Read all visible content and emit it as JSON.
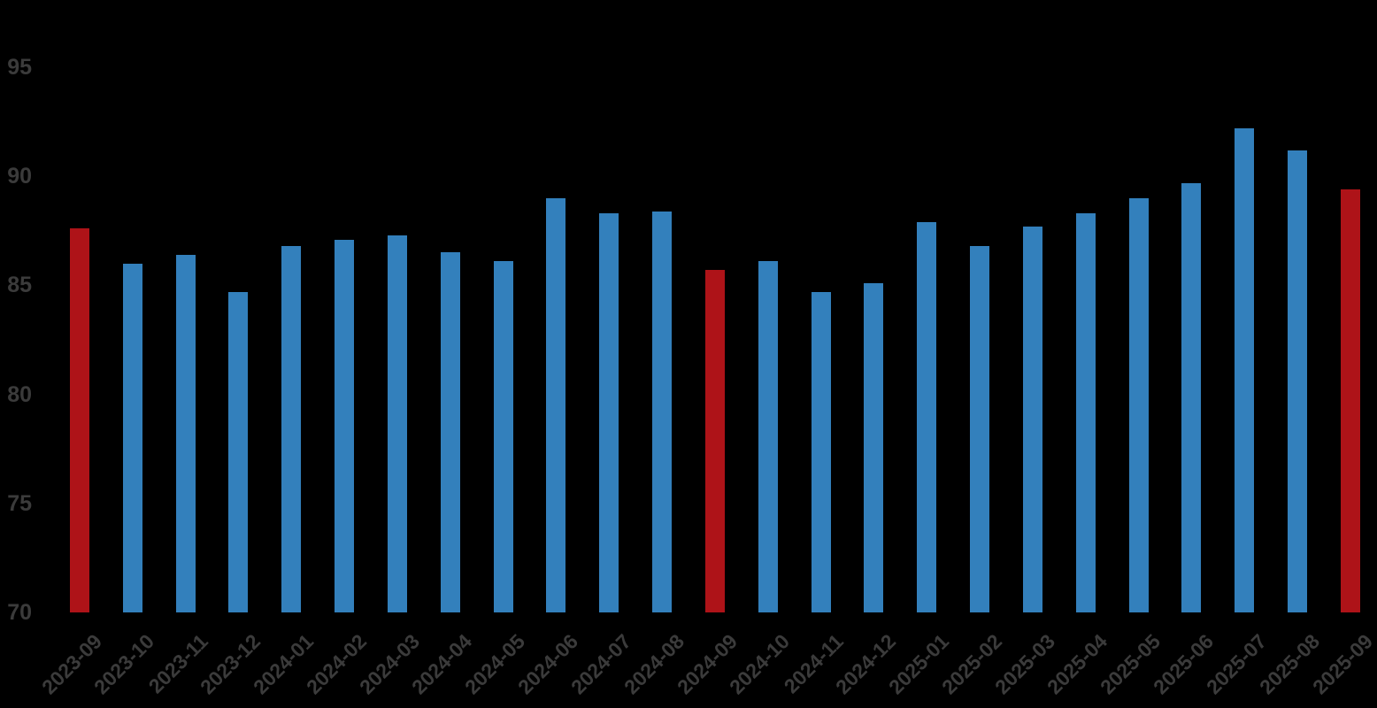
{
  "chart_data": {
    "type": "bar",
    "title": "",
    "xlabel": "",
    "ylabel": "",
    "categories": [
      "2023-09",
      "2023-10",
      "2023-11",
      "2023-12",
      "2024-01",
      "2024-02",
      "2024-03",
      "2024-04",
      "2024-05",
      "2024-06",
      "2024-07",
      "2024-08",
      "2024-09",
      "2024-10",
      "2024-11",
      "2024-12",
      "2025-01",
      "2025-02",
      "2025-03",
      "2025-04",
      "2025-05",
      "2025-06",
      "2025-07",
      "2025-08",
      "2025-09"
    ],
    "values": [
      87.6,
      86.0,
      86.4,
      84.7,
      86.8,
      87.1,
      87.3,
      86.5,
      86.1,
      89.0,
      88.3,
      88.4,
      85.7,
      86.1,
      84.7,
      85.1,
      87.9,
      86.8,
      87.7,
      88.3,
      89.0,
      89.7,
      92.2,
      91.2,
      89.4
    ],
    "highlight_indices": [
      0,
      12,
      24
    ],
    "legend": [],
    "grid": false,
    "y_axis": {
      "min": 70,
      "max": 95,
      "tick_step": 5,
      "tick_labels": [
        "70",
        "75",
        "80",
        "85",
        "90",
        "95"
      ]
    },
    "colors": {
      "bar_default": "#3380BC",
      "bar_highlight": "#AE1318",
      "tick_text": "#3B3B3B",
      "background": "#000000"
    }
  }
}
